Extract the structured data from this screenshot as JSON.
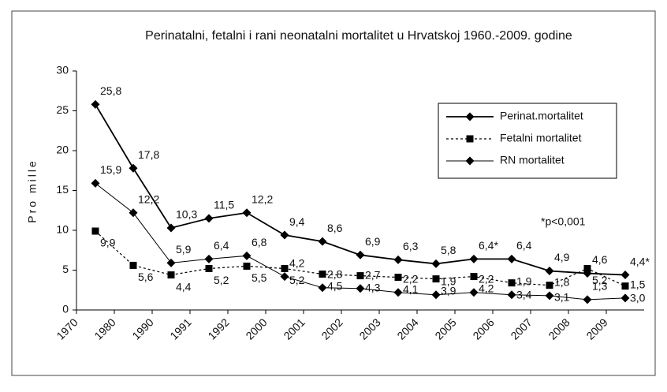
{
  "chart_data": {
    "type": "line",
    "title": "Perinatalni, fetalni i rani neonatalni mortalitet u Hrvatskoj 1960.-2009. godine",
    "y_label": "Pro mille",
    "annotation": "*p<0,001",
    "categories": [
      "1970",
      "1980",
      "1990",
      "1991",
      "1992",
      "2000",
      "2001",
      "2002",
      "2003",
      "2004",
      "2005",
      "2006",
      "2007",
      "2008",
      "2009"
    ],
    "ylim": [
      0,
      30
    ],
    "yticks": [
      0,
      5,
      10,
      15,
      20,
      25,
      30
    ],
    "legend": "upper right",
    "series": [
      {
        "name": "Perinat.mortalitet",
        "color": "#000000",
        "marker": "diamond",
        "dash": "solid",
        "values": [
          25.8,
          17.8,
          10.3,
          11.5,
          12.2,
          9.4,
          8.6,
          6.9,
          6.3,
          5.8,
          6.4,
          6.4,
          4.9,
          4.6,
          4.4
        ],
        "value_labels": [
          "25,8",
          "17,8",
          "10,3",
          "11,5",
          "12,2",
          "9,4",
          "8,6",
          "6,9",
          "6,3",
          "5,8",
          "6,4*",
          "6,4",
          "4,9",
          "4,6",
          "4,4*"
        ]
      },
      {
        "name": "Fetalni mortalitet",
        "color": "#000000",
        "marker": "square",
        "dash": "dashed",
        "values": [
          9.9,
          5.6,
          4.4,
          5.2,
          5.5,
          5.2,
          4.5,
          4.3,
          4.1,
          3.9,
          4.2,
          3.4,
          3.1,
          5.2,
          3.0
        ],
        "value_labels": [
          "9,9",
          "5,6",
          "4,4",
          "5,2",
          "5,5",
          "5,2",
          "4,5",
          "4,3",
          "4,1",
          "3,9",
          "4,2",
          "3,4",
          "3,1",
          "5,2",
          "3,0"
        ]
      },
      {
        "name": "RN mortalitet",
        "color": "#000000",
        "marker": "diamond",
        "dash": "thin",
        "values": [
          15.9,
          12.2,
          5.9,
          6.4,
          6.8,
          4.2,
          2.8,
          2.7,
          2.2,
          1.9,
          2.2,
          1.9,
          1.8,
          1.3,
          1.5
        ],
        "value_labels": [
          "15,9",
          "12,2",
          "5,9",
          "6,4",
          "6,8",
          "4,2",
          "2,8",
          "2,7",
          "2,2",
          "1,9",
          "2,2",
          "1,9",
          "1,8",
          "1,3",
          "1,5"
        ]
      }
    ]
  }
}
